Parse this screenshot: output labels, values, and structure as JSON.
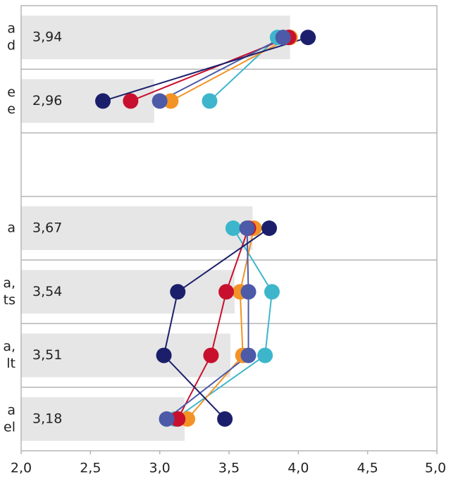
{
  "chart_data": {
    "type": "bar",
    "orientation": "horizontal",
    "categories": [
      [
        "a",
        "d"
      ],
      [
        "e",
        "e"
      ],
      null,
      [
        "a"
      ],
      [
        "a,",
        "ts"
      ],
      [
        "a,",
        "lt"
      ],
      [
        "a",
        "el"
      ]
    ],
    "values": [
      3.94,
      2.96,
      null,
      3.67,
      3.54,
      3.51,
      3.18
    ],
    "value_labels": [
      "3,94",
      "2,96",
      null,
      "3,67",
      "3,54",
      "3,51",
      "3,18"
    ],
    "color": "#e6e6e6",
    "xlim": [
      2.0,
      5.0
    ],
    "xticks": [
      {
        "value": 2.0,
        "label": "2,0"
      },
      {
        "value": 2.5,
        "label": "2,5"
      },
      {
        "value": 3.0,
        "label": "3,0"
      },
      {
        "value": 3.5,
        "label": "3,5"
      },
      {
        "value": 4.0,
        "label": "4,0"
      },
      {
        "value": 4.5,
        "label": "4,5"
      },
      {
        "value": 5.0,
        "label": "5,0"
      }
    ],
    "series": [
      {
        "type": "line",
        "color": "#3db6cc",
        "values": [
          3.85,
          3.36,
          null,
          3.53,
          3.81,
          3.76,
          3.11
        ]
      },
      {
        "type": "line",
        "color": "#f39325",
        "values": [
          3.94,
          3.08,
          null,
          3.68,
          3.58,
          3.6,
          3.2
        ]
      },
      {
        "type": "line",
        "color": "#c8102e",
        "values": [
          3.93,
          2.79,
          null,
          3.64,
          3.48,
          3.37,
          3.13
        ]
      },
      {
        "type": "line",
        "color": "#4c5aa8",
        "values": [
          3.89,
          3.0,
          null,
          3.63,
          3.64,
          3.64,
          3.05
        ]
      },
      {
        "type": "line",
        "color": "#1b1f6b",
        "values": [
          4.07,
          2.59,
          null,
          3.79,
          3.13,
          3.03,
          3.47
        ]
      }
    ]
  }
}
